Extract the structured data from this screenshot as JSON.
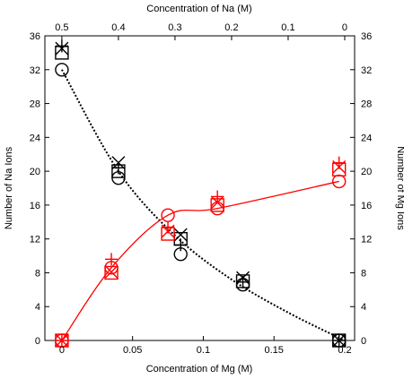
{
  "chart_data": {
    "type": "scatter",
    "axes": {
      "x_bottom": {
        "label": "Concentration of Mg (M)",
        "range": [
          -0.012,
          0.207
        ],
        "ticks": [
          0,
          0.05,
          0.1,
          0.15,
          0.2
        ],
        "tick_labels": [
          "0",
          "0.05",
          "0.1",
          "0.15",
          "0.2"
        ]
      },
      "x_top": {
        "label": "Concentration of Na (M)",
        "ticks": [
          0.5,
          0.4,
          0.3,
          0.2,
          0.1,
          0
        ],
        "tick_labels": [
          "0.5",
          "0.4",
          "0.3",
          "0.2",
          "0.1",
          "0"
        ],
        "tick_positions_on_bottom_scale": [
          0,
          0.04,
          0.08,
          0.12,
          0.16,
          0.2
        ]
      },
      "y_left": {
        "label": "Number of Na Ions",
        "range": [
          0,
          36
        ],
        "ticks": [
          0,
          4,
          8,
          12,
          16,
          20,
          24,
          28,
          32,
          36
        ],
        "tick_labels": [
          "0",
          "4",
          "8",
          "12",
          "16",
          "20",
          "24",
          "28",
          "32",
          "36"
        ]
      },
      "y_right": {
        "label": "Number of Mg Ions",
        "range": [
          0,
          36
        ],
        "ticks": [
          0,
          4,
          8,
          12,
          16,
          20,
          24,
          28,
          32,
          36
        ],
        "tick_labels": [
          "0",
          "4",
          "8",
          "12",
          "16",
          "20",
          "24",
          "28",
          "32",
          "36"
        ]
      }
    },
    "grid": false,
    "legend": "none",
    "series": [
      {
        "axis": "left",
        "color": "#000000",
        "line": "dotted",
        "line_x": [
          0,
          0.04,
          0.08,
          0.12,
          0.16,
          0.2
        ],
        "line_y": [
          32,
          20,
          12.4,
          7.2,
          3.3,
          0
        ],
        "x": [
          0,
          0.04,
          0.084,
          0.128,
          0.196
        ],
        "markers": {
          "circle": [
            32,
            19.2,
            10.2,
            6.6,
            0
          ],
          "square": [
            34,
            20,
            12,
            7,
            0
          ],
          "x": [
            34.5,
            21,
            12.5,
            7.4,
            0
          ],
          "plus": [
            34.8,
            20.4,
            11.3,
            6.9,
            0
          ]
        }
      },
      {
        "axis": "right",
        "color": "#ff0000",
        "line": "solid",
        "line_x": [
          0,
          0.035,
          0.075,
          0.11,
          0.196
        ],
        "line_y": [
          0,
          8.6,
          14.8,
          15.6,
          18.8
        ],
        "x": [
          0,
          0.035,
          0.075,
          0.11,
          0.196
        ],
        "markers": {
          "circle": [
            0,
            8.6,
            14.8,
            15.6,
            18.8
          ],
          "square": [
            0,
            8,
            12.6,
            16,
            20.2
          ],
          "x": [
            0,
            8.1,
            12.9,
            16.3,
            20.5
          ],
          "plus": [
            0,
            9.6,
            13.4,
            17,
            21
          ]
        }
      }
    ]
  }
}
